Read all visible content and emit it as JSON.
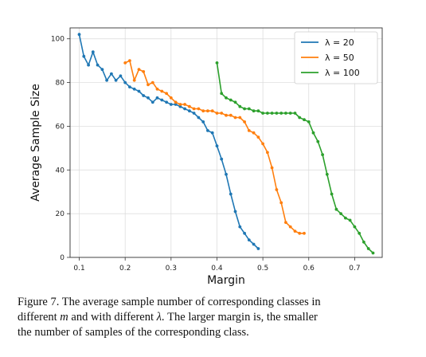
{
  "chart_data": {
    "type": "line",
    "title": "",
    "xlabel": "Margin",
    "ylabel": "Average Sample Size",
    "xlim": [
      0.08,
      0.76
    ],
    "ylim": [
      0,
      105
    ],
    "xticks": [
      "0.1",
      "0.2",
      "0.3",
      "0.4",
      "0.5",
      "0.6",
      "0.7"
    ],
    "yticks": [
      "0",
      "20",
      "40",
      "60",
      "80",
      "100"
    ],
    "grid": true,
    "legend_position": "top-right",
    "series": [
      {
        "name": "λ = 20",
        "color": "#1f77b4",
        "x": [
          0.1,
          0.11,
          0.12,
          0.13,
          0.14,
          0.15,
          0.16,
          0.17,
          0.18,
          0.19,
          0.2,
          0.21,
          0.22,
          0.23,
          0.24,
          0.25,
          0.26,
          0.27,
          0.28,
          0.29,
          0.3,
          0.31,
          0.32,
          0.33,
          0.34,
          0.35,
          0.36,
          0.37,
          0.38,
          0.39,
          0.4,
          0.41,
          0.42,
          0.43,
          0.44,
          0.45,
          0.46,
          0.47,
          0.48,
          0.49
        ],
        "y": [
          102,
          92,
          88,
          94,
          88,
          86,
          81,
          84,
          81,
          83,
          80,
          78,
          77,
          76,
          74,
          73,
          71,
          73,
          72,
          71,
          70,
          70,
          69,
          68,
          67,
          66,
          64,
          62,
          58,
          57,
          51,
          45,
          38,
          29,
          21,
          14,
          11,
          8,
          6,
          4
        ]
      },
      {
        "name": "λ = 50",
        "color": "#ff7f0e",
        "x": [
          0.2,
          0.21,
          0.22,
          0.23,
          0.24,
          0.25,
          0.26,
          0.27,
          0.28,
          0.29,
          0.3,
          0.31,
          0.32,
          0.33,
          0.34,
          0.35,
          0.36,
          0.37,
          0.38,
          0.39,
          0.4,
          0.41,
          0.42,
          0.43,
          0.44,
          0.45,
          0.46,
          0.47,
          0.48,
          0.49,
          0.5,
          0.51,
          0.52,
          0.53,
          0.54,
          0.55,
          0.56,
          0.57,
          0.58,
          0.59
        ],
        "y": [
          89,
          90,
          81,
          86,
          85,
          79,
          80,
          77,
          76,
          75,
          73,
          71,
          70,
          70,
          69,
          68,
          68,
          67,
          67,
          67,
          66,
          66,
          65,
          65,
          64,
          64,
          62,
          58,
          57,
          55,
          52,
          48,
          41,
          31,
          25,
          16,
          14,
          12,
          11,
          11
        ]
      },
      {
        "name": "λ = 100",
        "color": "#2ca02c",
        "x": [
          0.4,
          0.41,
          0.42,
          0.43,
          0.44,
          0.45,
          0.46,
          0.47,
          0.48,
          0.49,
          0.5,
          0.51,
          0.52,
          0.53,
          0.54,
          0.55,
          0.56,
          0.57,
          0.58,
          0.59,
          0.6,
          0.61,
          0.62,
          0.63,
          0.64,
          0.65,
          0.66,
          0.67,
          0.68,
          0.69,
          0.7,
          0.71,
          0.72,
          0.73,
          0.74
        ],
        "y": [
          89,
          75,
          73,
          72,
          71,
          69,
          68,
          68,
          67,
          67,
          66,
          66,
          66,
          66,
          66,
          66,
          66,
          66,
          64,
          63,
          62,
          57,
          53,
          47,
          38,
          29,
          22,
          20,
          18,
          17,
          14,
          11,
          7,
          4,
          2
        ]
      }
    ]
  },
  "caption": {
    "line1": "Figure 7. The average sample number of corresponding classes in",
    "line2_pre": "different ",
    "line2_m": "m",
    "line2_mid": " and with different ",
    "line2_lambda": "λ",
    "line2_post": ". The larger margin is, the smaller",
    "line3": "the number of samples of the corresponding class."
  }
}
